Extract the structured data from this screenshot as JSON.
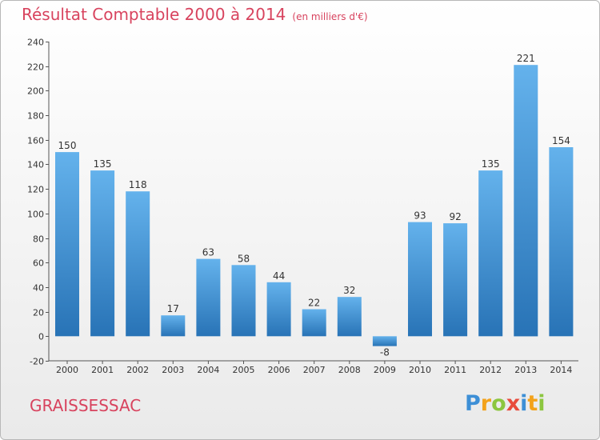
{
  "header": {
    "title": "Résultat Comptable 2000 à 2014",
    "subtitle": "(en milliers d'€)"
  },
  "footer": {
    "commune": "GRAISSESSAC",
    "logo_letters": [
      "P",
      "r",
      "o",
      "x",
      "i",
      "t",
      "i"
    ],
    "logo_colors": [
      "#3d8fd6",
      "#f3a21b",
      "#8cc63f",
      "#e84b3c",
      "#3d8fd6",
      "#f3a21b",
      "#8cc63f"
    ]
  },
  "chart_data": {
    "type": "bar",
    "categories": [
      "2000",
      "2001",
      "2002",
      "2003",
      "2004",
      "2005",
      "2006",
      "2007",
      "2008",
      "2009",
      "2010",
      "2011",
      "2012",
      "2013",
      "2014"
    ],
    "values": [
      150,
      135,
      118,
      17,
      63,
      58,
      44,
      22,
      32,
      -8,
      93,
      92,
      135,
      221,
      154
    ],
    "ylim": [
      -20,
      240
    ],
    "yticks": [
      -20,
      0,
      20,
      40,
      60,
      80,
      100,
      120,
      140,
      160,
      180,
      200,
      220,
      240
    ],
    "grid": false,
    "bar_color": "#3d8fd6",
    "bar_color_light": "#64b2ec",
    "bar_color_dark": "#2873b6"
  }
}
